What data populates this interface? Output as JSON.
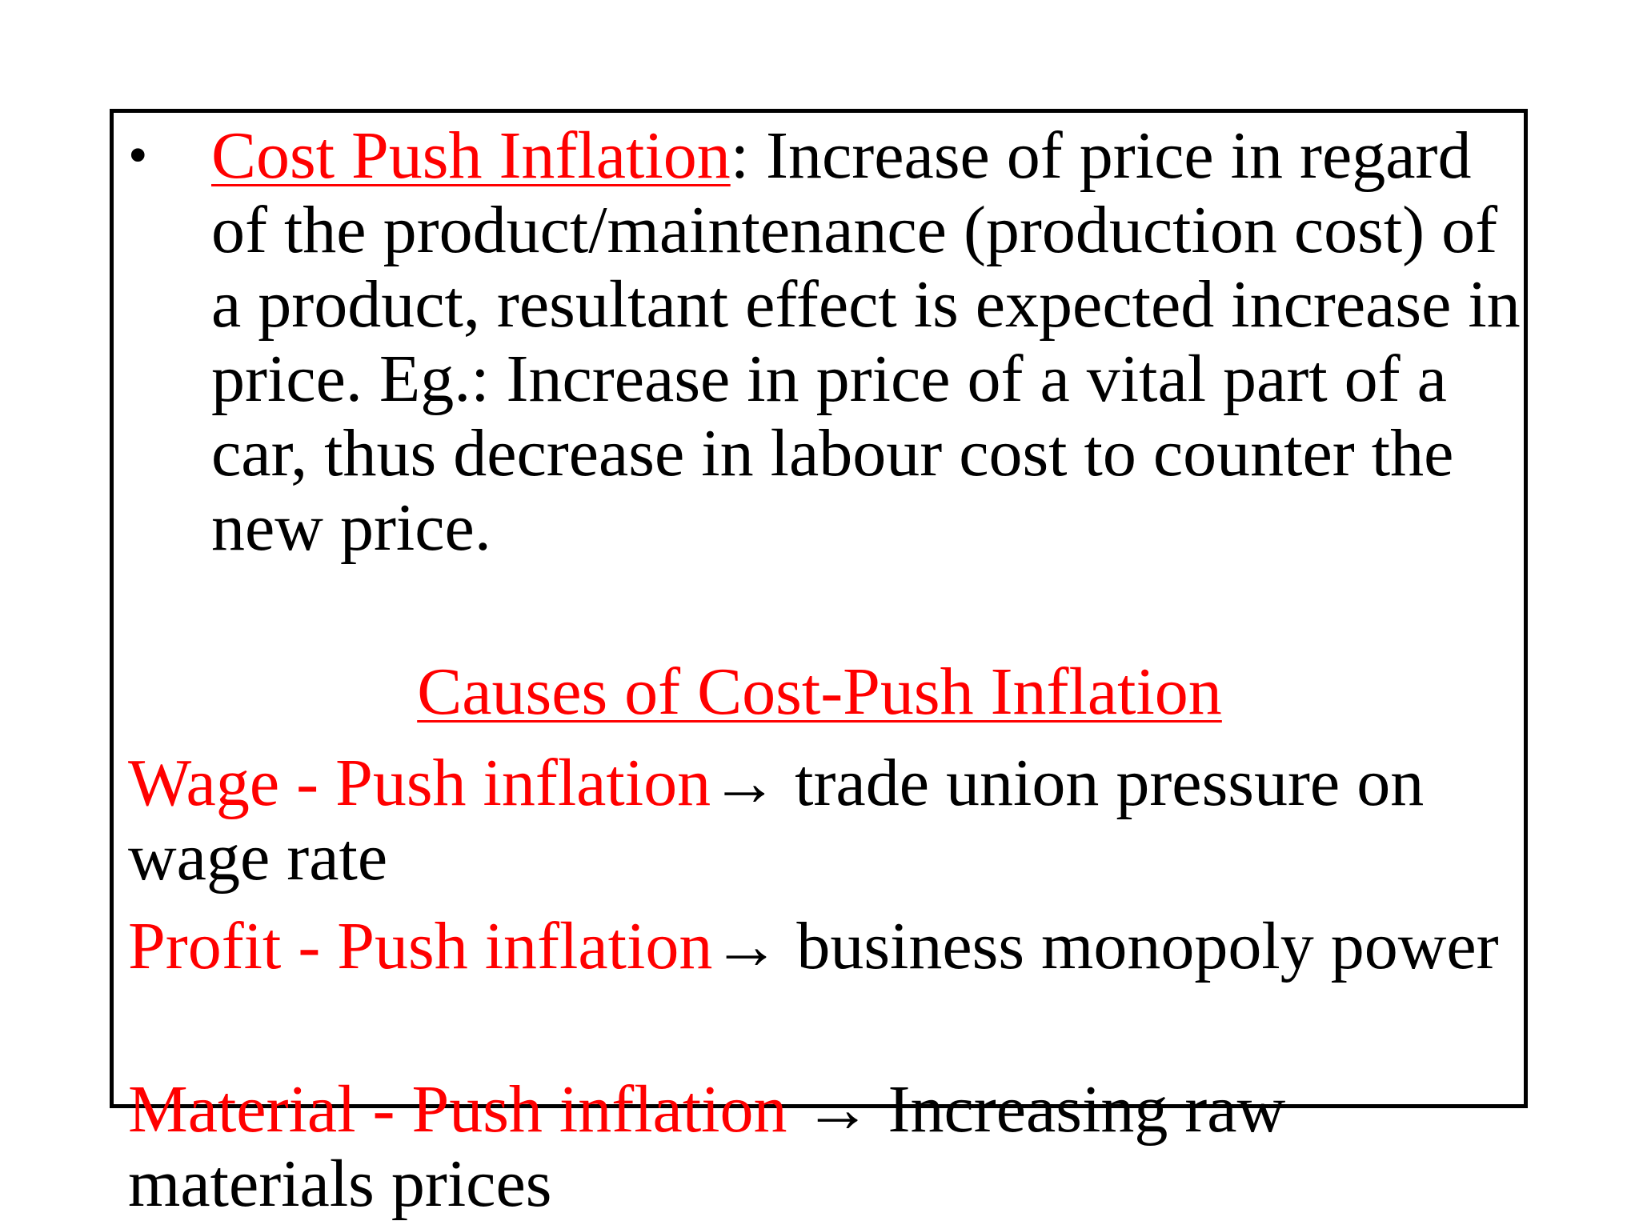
{
  "bullet": {
    "symbol": "•",
    "term": "Cost Push Inflation",
    "definition": ": Increase of price in regard of the product/maintenance (production cost) of a product, resultant effect is expected increase in price. Eg.: Increase in price of a vital part of a car, thus decrease in labour cost to counter the new price."
  },
  "causes_heading": "Causes of Cost-Push Inflation",
  "causes": [
    {
      "type": "Wage - Push inflation",
      "arrow": "→",
      "description": " trade union pressure on wage rate"
    },
    {
      "type": "Profit - Push inflation",
      "arrow": "→",
      "description": " business monopoly power"
    },
    {
      "type": "Material - Push inflation",
      "arrow": " →",
      "description": " Increasing raw materials prices"
    }
  ],
  "colors": {
    "accent": "#ff0000",
    "text": "#000000",
    "frame": "#000000"
  }
}
